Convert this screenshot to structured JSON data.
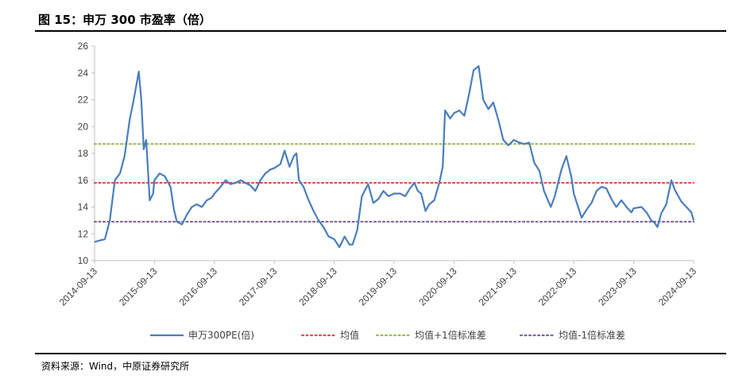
{
  "header": {
    "title": "图 15：申万 300 市盈率（倍）"
  },
  "footer": {
    "source": "资料来源：Wind，中原证券研究所"
  },
  "colors": {
    "pe": "#4a7ebb",
    "mean": "#d9534f",
    "plus": "#9bbb59",
    "minus": "#8064a2"
  },
  "chart_data": {
    "type": "line",
    "title": "图 15：申万 300 市盈率（倍）",
    "ylim": [
      10,
      26
    ],
    "yticks": [
      10,
      12,
      14,
      16,
      18,
      20,
      22,
      24,
      26
    ],
    "xlim": [
      "2014-09-13",
      "2024-09-13"
    ],
    "xticks": [
      "2014-09-13",
      "2015-09-13",
      "2016-09-13",
      "2017-09-13",
      "2018-09-13",
      "2019-09-13",
      "2020-09-13",
      "2021-09-13",
      "2022-09-13",
      "2023-09-13",
      "2024-09-13"
    ],
    "grid": false,
    "legend_position": "bottom",
    "series": [
      {
        "name": "申万300PE(倍)",
        "style": "solid",
        "x": [
          "2014-09-13",
          "2014-11-15",
          "2014-12-15",
          "2015-01-15",
          "2015-02-15",
          "2015-03-15",
          "2015-04-15",
          "2015-05-10",
          "2015-06-10",
          "2015-06-25",
          "2015-07-10",
          "2015-07-25",
          "2015-08-15",
          "2015-09-05",
          "2015-09-13",
          "2015-10-15",
          "2015-11-15",
          "2015-12-20",
          "2016-01-10",
          "2016-01-28",
          "2016-02-28",
          "2016-03-28",
          "2016-04-28",
          "2016-05-28",
          "2016-06-28",
          "2016-07-28",
          "2016-08-28",
          "2016-09-13",
          "2016-10-20",
          "2016-11-20",
          "2016-12-20",
          "2017-01-20",
          "2017-02-20",
          "2017-03-20",
          "2017-04-20",
          "2017-05-20",
          "2017-06-20",
          "2017-07-20",
          "2017-08-20",
          "2017-09-13",
          "2017-10-20",
          "2017-11-15",
          "2017-12-15",
          "2018-01-10",
          "2018-01-26",
          "2018-02-10",
          "2018-03-10",
          "2018-04-10",
          "2018-05-10",
          "2018-06-10",
          "2018-07-10",
          "2018-08-10",
          "2018-09-13",
          "2018-10-15",
          "2018-11-15",
          "2018-12-15",
          "2019-01-03",
          "2019-02-01",
          "2019-03-01",
          "2019-04-08",
          "2019-05-10",
          "2019-06-10",
          "2019-07-10",
          "2019-08-10",
          "2019-09-13",
          "2019-10-20",
          "2019-11-20",
          "2019-12-20",
          "2020-01-15",
          "2020-02-05",
          "2020-02-25",
          "2020-03-23",
          "2020-04-15",
          "2020-05-15",
          "2020-06-15",
          "2020-07-06",
          "2020-07-20",
          "2020-08-20",
          "2020-09-13",
          "2020-10-15",
          "2020-11-15",
          "2020-12-15",
          "2021-01-10",
          "2021-02-10",
          "2021-03-10",
          "2021-04-10",
          "2021-05-10",
          "2021-06-10",
          "2021-07-10",
          "2021-08-10",
          "2021-09-13",
          "2021-10-15",
          "2021-11-15",
          "2021-12-15",
          "2022-01-15",
          "2022-02-15",
          "2022-03-15",
          "2022-04-26",
          "2022-05-20",
          "2022-06-30",
          "2022-07-30",
          "2022-08-30",
          "2022-09-13",
          "2022-10-31",
          "2022-11-30",
          "2022-12-30",
          "2023-01-30",
          "2023-02-28",
          "2023-03-30",
          "2023-04-30",
          "2023-05-30",
          "2023-06-30",
          "2023-07-31",
          "2023-08-30",
          "2023-09-13",
          "2023-10-30",
          "2023-11-30",
          "2023-12-30",
          "2024-01-20",
          "2024-02-05",
          "2024-02-28",
          "2024-03-30",
          "2024-04-30",
          "2024-05-20",
          "2024-06-30",
          "2024-07-31",
          "2024-08-30",
          "2024-09-13"
        ],
        "y": [
          11.4,
          11.6,
          13.0,
          16.0,
          16.5,
          17.8,
          20.5,
          22.0,
          24.1,
          22.0,
          18.3,
          19.0,
          14.5,
          15.0,
          16.0,
          16.5,
          16.3,
          15.5,
          13.8,
          12.9,
          12.7,
          13.4,
          14.0,
          14.2,
          14.0,
          14.5,
          14.7,
          15.0,
          15.5,
          16.0,
          15.7,
          15.8,
          16.0,
          15.8,
          15.6,
          15.2,
          16.0,
          16.5,
          16.8,
          16.9,
          17.2,
          18.2,
          17.0,
          17.8,
          18.0,
          16.0,
          15.5,
          14.5,
          13.7,
          13.0,
          12.5,
          11.8,
          11.6,
          11.0,
          11.8,
          11.2,
          11.2,
          12.3,
          14.8,
          15.7,
          14.3,
          14.6,
          15.2,
          14.8,
          15.0,
          15.0,
          14.8,
          15.4,
          15.8,
          15.2,
          15.0,
          13.7,
          14.2,
          14.5,
          15.8,
          17.0,
          21.2,
          20.6,
          21.0,
          21.2,
          20.8,
          22.5,
          24.2,
          24.5,
          22.0,
          21.3,
          21.8,
          20.5,
          19.0,
          18.6,
          19.0,
          18.8,
          18.7,
          18.8,
          17.3,
          16.7,
          15.2,
          14.0,
          14.8,
          16.8,
          17.8,
          16.2,
          15.0,
          13.2,
          13.8,
          14.3,
          15.2,
          15.5,
          15.4,
          14.6,
          14.0,
          14.5,
          14.0,
          13.6,
          13.9,
          14.0,
          13.6,
          13.0,
          12.8,
          12.5,
          13.5,
          14.2,
          16.0,
          15.3,
          14.4,
          14.0,
          13.6,
          13.0
        ]
      },
      {
        "name": "均值",
        "style": "dotted",
        "value": 15.8
      },
      {
        "name": "均值+1倍标准差",
        "style": "dotted",
        "value": 18.7
      },
      {
        "name": "均值-1倍标准差",
        "style": "dotted",
        "value": 12.9
      }
    ]
  }
}
